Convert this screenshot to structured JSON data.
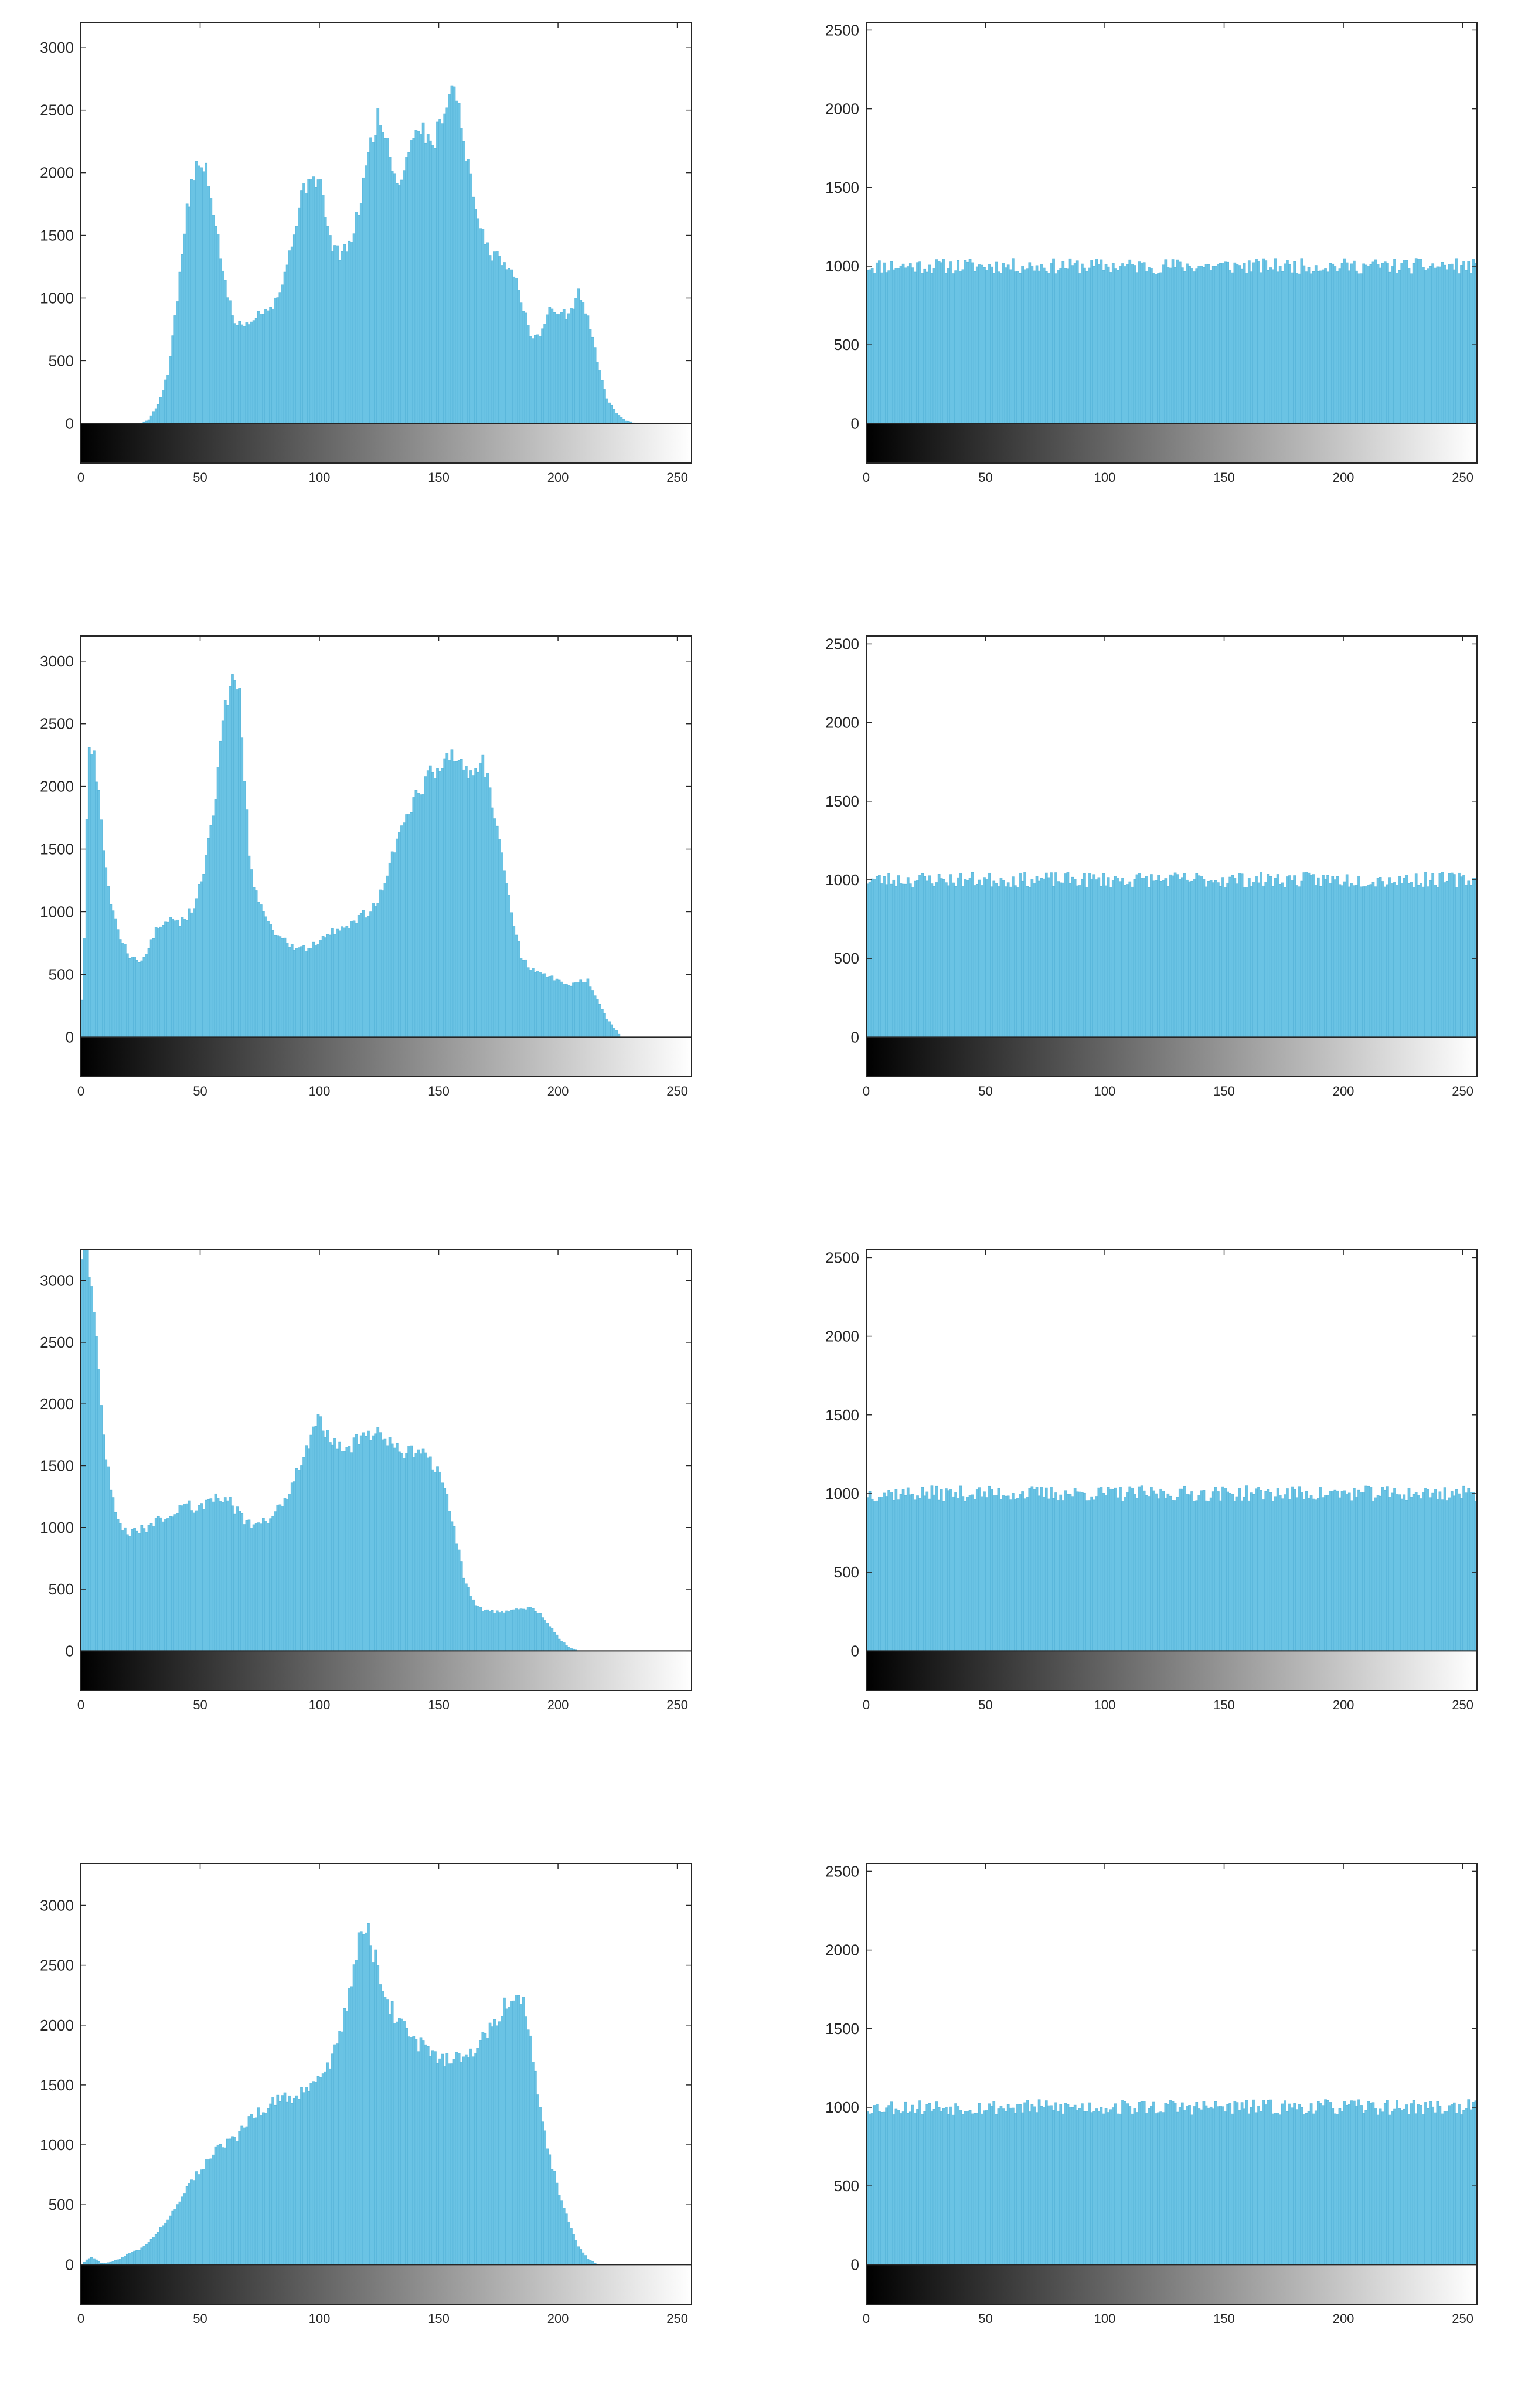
{
  "colors": {
    "bar": "#6ac3e4",
    "bar_edge": "#55b3d8",
    "axis": "#262626",
    "colorbar_start": "#000000",
    "colorbar_end": "#ffffff"
  },
  "chart_data": [
    {
      "id": "row1-original",
      "type": "bar",
      "x": [
        0,
        10,
        20,
        25,
        28,
        32,
        36,
        40,
        44,
        48,
        52,
        56,
        60,
        64,
        68,
        72,
        76,
        80,
        84,
        88,
        92,
        96,
        100,
        104,
        108,
        112,
        116,
        120,
        124,
        128,
        132,
        136,
        140,
        144,
        148,
        152,
        156,
        160,
        164,
        168,
        172,
        176,
        180,
        184,
        188,
        192,
        196,
        200,
        204,
        208,
        212,
        216,
        220,
        224,
        228,
        232,
        240,
        255
      ],
      "values": [
        0,
        0,
        0,
        0,
        30,
        150,
        400,
        1000,
        1700,
        2050,
        2000,
        1600,
        1100,
        800,
        780,
        850,
        900,
        950,
        1100,
        1450,
        1800,
        2000,
        1900,
        1450,
        1350,
        1400,
        1700,
        2150,
        2450,
        2250,
        1900,
        2100,
        2400,
        2300,
        2250,
        2550,
        2700,
        2300,
        1800,
        1500,
        1350,
        1300,
        1250,
        1000,
        700,
        700,
        900,
        900,
        850,
        1050,
        850,
        500,
        200,
        80,
        20,
        0,
        0,
        0
      ],
      "xlim": [
        0,
        256
      ],
      "ylim": [
        0,
        3200
      ],
      "xticks": [
        0,
        50,
        100,
        150,
        200,
        250
      ],
      "yticks": [
        0,
        500,
        1000,
        1500,
        2000,
        2500,
        3000
      ],
      "colorbar": "grayscale"
    },
    {
      "id": "row1-equalized",
      "type": "bar",
      "x": [
        0,
        255
      ],
      "values": [
        1000,
        1000
      ],
      "noise": 50,
      "seed": 11,
      "xlim": [
        0,
        256
      ],
      "ylim": [
        0,
        2550
      ],
      "xticks": [
        0,
        50,
        100,
        150,
        200,
        250
      ],
      "yticks": [
        0,
        500,
        1000,
        1500,
        2000,
        2500
      ],
      "colorbar": "grayscale"
    },
    {
      "id": "row2-original",
      "type": "bar",
      "x": [
        0,
        1,
        2,
        3,
        5,
        8,
        12,
        16,
        20,
        24,
        28,
        32,
        36,
        40,
        44,
        48,
        52,
        56,
        58,
        60,
        62,
        64,
        66,
        68,
        70,
        72,
        76,
        80,
        84,
        88,
        92,
        96,
        100,
        104,
        108,
        112,
        116,
        120,
        124,
        128,
        132,
        136,
        140,
        144,
        148,
        152,
        156,
        160,
        164,
        168,
        172,
        176,
        180,
        184,
        188,
        192,
        196,
        200,
        204,
        208,
        212,
        216,
        220,
        224,
        226,
        240,
        255
      ],
      "values": [
        300,
        800,
        1800,
        2400,
        2300,
        1700,
        1100,
        800,
        650,
        600,
        700,
        900,
        950,
        900,
        950,
        1100,
        1400,
        1900,
        2300,
        2600,
        2900,
        2950,
        2700,
        2100,
        1500,
        1200,
        1000,
        850,
        780,
        720,
        700,
        720,
        780,
        830,
        850,
        900,
        950,
        1000,
        1100,
        1300,
        1550,
        1750,
        1900,
        2050,
        2150,
        2250,
        2250,
        2200,
        2050,
        2200,
        1900,
        1500,
        1000,
        650,
        550,
        500,
        480,
        450,
        400,
        450,
        450,
        300,
        150,
        50,
        0,
        0,
        0
      ],
      "xlim": [
        0,
        256
      ],
      "ylim": [
        0,
        3200
      ],
      "xticks": [
        0,
        50,
        100,
        150,
        200,
        250
      ],
      "yticks": [
        0,
        500,
        1000,
        1500,
        2000,
        2500,
        3000
      ],
      "colorbar": "grayscale"
    },
    {
      "id": "row2-equalized",
      "type": "bar",
      "x": [
        0,
        255
      ],
      "values": [
        1000,
        1000
      ],
      "noise": 50,
      "seed": 23,
      "xlim": [
        0,
        256
      ],
      "ylim": [
        0,
        2550
      ],
      "xticks": [
        0,
        50,
        100,
        150,
        200,
        250
      ],
      "yticks": [
        0,
        500,
        1000,
        1500,
        2000,
        2500
      ],
      "colorbar": "grayscale"
    },
    {
      "id": "row3-original",
      "type": "bar",
      "x": [
        0,
        2,
        4,
        6,
        8,
        10,
        12,
        14,
        16,
        18,
        20,
        24,
        28,
        32,
        36,
        40,
        44,
        48,
        52,
        56,
        60,
        64,
        68,
        72,
        76,
        80,
        84,
        88,
        92,
        96,
        100,
        104,
        108,
        112,
        116,
        120,
        124,
        128,
        132,
        136,
        140,
        144,
        148,
        152,
        156,
        160,
        164,
        168,
        172,
        176,
        180,
        184,
        188,
        192,
        196,
        200,
        204,
        208,
        212,
        216,
        220,
        224,
        240,
        255
      ],
      "values": [
        3200,
        3200,
        3000,
        2500,
        2000,
        1600,
        1300,
        1100,
        1000,
        980,
        960,
        980,
        1000,
        1050,
        1100,
        1150,
        1200,
        1150,
        1200,
        1250,
        1250,
        1150,
        1050,
        1000,
        1050,
        1100,
        1200,
        1350,
        1550,
        1750,
        1900,
        1700,
        1650,
        1650,
        1700,
        1750,
        1800,
        1700,
        1650,
        1600,
        1600,
        1580,
        1500,
        1300,
        1000,
        600,
        400,
        330,
        320,
        320,
        320,
        340,
        350,
        300,
        200,
        100,
        30,
        0,
        0,
        0,
        0,
        0,
        0,
        0
      ],
      "xlim": [
        0,
        256
      ],
      "ylim": [
        0,
        3250
      ],
      "xticks": [
        0,
        50,
        100,
        150,
        200,
        250
      ],
      "yticks": [
        0,
        500,
        1000,
        1500,
        2000,
        2500,
        3000
      ],
      "colorbar": "grayscale"
    },
    {
      "id": "row3-equalized",
      "type": "bar",
      "x": [
        0,
        255
      ],
      "values": [
        1000,
        1000
      ],
      "noise": 50,
      "seed": 37,
      "xlim": [
        0,
        256
      ],
      "ylim": [
        0,
        2550
      ],
      "xticks": [
        0,
        50,
        100,
        150,
        200,
        250
      ],
      "yticks": [
        0,
        500,
        1000,
        1500,
        2000,
        2500
      ],
      "colorbar": "grayscale"
    },
    {
      "id": "row4-original",
      "type": "bar",
      "x": [
        0,
        2,
        4,
        6,
        8,
        12,
        16,
        20,
        24,
        28,
        32,
        36,
        40,
        44,
        48,
        52,
        56,
        60,
        64,
        68,
        72,
        76,
        80,
        84,
        88,
        92,
        96,
        100,
        104,
        108,
        112,
        116,
        120,
        124,
        128,
        132,
        136,
        140,
        144,
        148,
        152,
        156,
        160,
        164,
        168,
        172,
        176,
        180,
        184,
        188,
        192,
        196,
        200,
        204,
        208,
        212,
        216,
        240,
        255
      ],
      "values": [
        0,
        40,
        60,
        40,
        10,
        20,
        50,
        100,
        120,
        180,
        280,
        380,
        500,
        650,
        750,
        850,
        950,
        1000,
        1050,
        1150,
        1250,
        1300,
        1350,
        1400,
        1400,
        1450,
        1500,
        1550,
        1700,
        1900,
        2300,
        2700,
        2750,
        2500,
        2200,
        2050,
        1950,
        1850,
        1800,
        1750,
        1700,
        1700,
        1750,
        1800,
        1900,
        2000,
        2150,
        2250,
        2250,
        1900,
        1300,
        900,
        600,
        350,
        150,
        50,
        0,
        0,
        0
      ],
      "xlim": [
        0,
        256
      ],
      "ylim": [
        0,
        3350
      ],
      "xticks": [
        0,
        50,
        100,
        150,
        200,
        250
      ],
      "yticks": [
        0,
        500,
        1000,
        1500,
        2000,
        2500,
        3000
      ],
      "colorbar": "grayscale"
    },
    {
      "id": "row4-equalized",
      "type": "bar",
      "x": [
        0,
        255
      ],
      "values": [
        1000,
        1000
      ],
      "noise": 50,
      "seed": 53,
      "xlim": [
        0,
        256
      ],
      "ylim": [
        0,
        2550
      ],
      "xticks": [
        0,
        50,
        100,
        150,
        200,
        250
      ],
      "yticks": [
        0,
        500,
        1000,
        1500,
        2000,
        2500
      ],
      "colorbar": "grayscale"
    }
  ]
}
